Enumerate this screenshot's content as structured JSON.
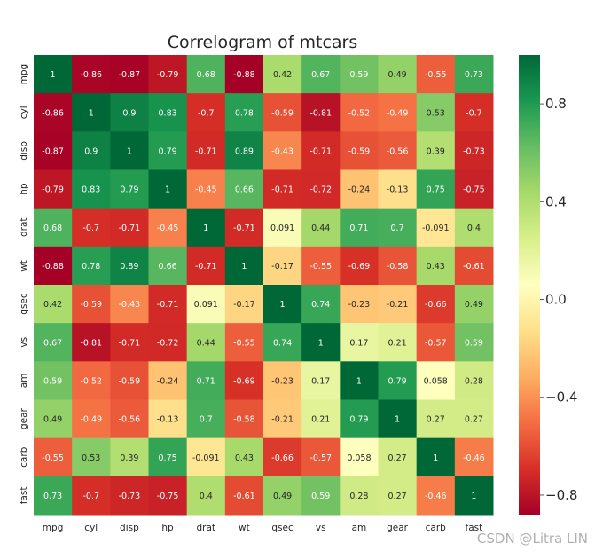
{
  "chart_data": {
    "type": "heatmap",
    "title": "Correlogram of mtcars",
    "variables": [
      "mpg",
      "cyl",
      "disp",
      "hp",
      "drat",
      "wt",
      "qsec",
      "vs",
      "am",
      "gear",
      "carb",
      "fast"
    ],
    "matrix": [
      [
        "1",
        "-0.86",
        "-0.87",
        "-0.79",
        "0.68",
        "-0.88",
        "0.42",
        "0.67",
        "0.59",
        "0.49",
        "-0.55",
        "0.73"
      ],
      [
        "-0.86",
        "1",
        "0.9",
        "0.83",
        "-0.7",
        "0.78",
        "-0.59",
        "-0.81",
        "-0.52",
        "-0.49",
        "0.53",
        "-0.7"
      ],
      [
        "-0.87",
        "0.9",
        "1",
        "0.79",
        "-0.71",
        "0.89",
        "-0.43",
        "-0.71",
        "-0.59",
        "-0.56",
        "0.39",
        "-0.73"
      ],
      [
        "-0.79",
        "0.83",
        "0.79",
        "1",
        "-0.45",
        "0.66",
        "-0.71",
        "-0.72",
        "-0.24",
        "-0.13",
        "0.75",
        "-0.75"
      ],
      [
        "0.68",
        "-0.7",
        "-0.71",
        "-0.45",
        "1",
        "-0.71",
        "0.091",
        "0.44",
        "0.71",
        "0.7",
        "-0.091",
        "0.4"
      ],
      [
        "-0.88",
        "0.78",
        "0.89",
        "0.66",
        "-0.71",
        "1",
        "-0.17",
        "-0.55",
        "-0.69",
        "-0.58",
        "0.43",
        "-0.61"
      ],
      [
        "0.42",
        "-0.59",
        "-0.43",
        "-0.71",
        "0.091",
        "-0.17",
        "1",
        "0.74",
        "-0.23",
        "-0.21",
        "-0.66",
        "0.49"
      ],
      [
        "0.67",
        "-0.81",
        "-0.71",
        "-0.72",
        "0.44",
        "-0.55",
        "0.74",
        "1",
        "0.17",
        "0.21",
        "-0.57",
        "0.59"
      ],
      [
        "0.59",
        "-0.52",
        "-0.59",
        "-0.24",
        "0.71",
        "-0.69",
        "-0.23",
        "0.17",
        "1",
        "0.79",
        "0.058",
        "0.28"
      ],
      [
        "0.49",
        "-0.49",
        "-0.56",
        "-0.13",
        "0.7",
        "-0.58",
        "-0.21",
        "0.21",
        "0.79",
        "1",
        "0.27",
        "0.27"
      ],
      [
        "-0.55",
        "0.53",
        "0.39",
        "0.75",
        "-0.091",
        "0.43",
        "-0.66",
        "-0.57",
        "0.058",
        "0.27",
        "1",
        "-0.46"
      ],
      [
        "0.73",
        "-0.7",
        "-0.73",
        "-0.75",
        "0.4",
        "-0.61",
        "0.49",
        "0.59",
        "0.28",
        "0.27",
        "-0.46",
        "1"
      ]
    ],
    "colormap": "RdYlGn",
    "vmin": -0.88,
    "vmax": 1.0,
    "colorbar_ticks": [
      "0.8",
      "0.4",
      "0.0",
      "−0.4",
      "−0.8"
    ],
    "colorbar_tick_values": [
      0.8,
      0.4,
      0.0,
      -0.4,
      -0.8
    ],
    "legend_position": "right"
  },
  "watermark": "CSDN @Litra LIN"
}
